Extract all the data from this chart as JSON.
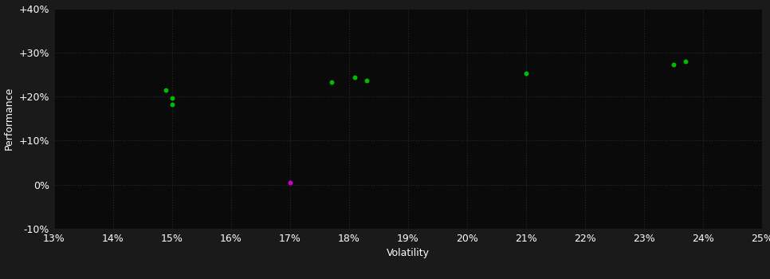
{
  "bg_outer": "#1a1a1a",
  "bg_inner": "#0a0a0a",
  "grid_color": "#2a2a2a",
  "text_color": "#ffffff",
  "xlabel": "Volatility",
  "ylabel": "Performance",
  "xlim": [
    0.13,
    0.25
  ],
  "ylim": [
    -0.1,
    0.4
  ],
  "xticks": [
    0.13,
    0.14,
    0.15,
    0.16,
    0.17,
    0.18,
    0.19,
    0.2,
    0.21,
    0.22,
    0.23,
    0.24,
    0.25
  ],
  "yticks": [
    -0.1,
    0.0,
    0.1,
    0.2,
    0.3,
    0.4
  ],
  "green_points": [
    [
      0.149,
      0.215
    ],
    [
      0.15,
      0.197
    ],
    [
      0.15,
      0.183
    ],
    [
      0.177,
      0.233
    ],
    [
      0.181,
      0.243
    ],
    [
      0.183,
      0.236
    ],
    [
      0.21,
      0.253
    ],
    [
      0.235,
      0.272
    ],
    [
      0.237,
      0.28
    ]
  ],
  "magenta_points": [
    [
      0.17,
      0.005
    ]
  ],
  "green_color": "#00bb00",
  "magenta_color": "#cc00cc",
  "marker_size": 18,
  "tick_fontsize": 9,
  "label_fontsize": 9
}
